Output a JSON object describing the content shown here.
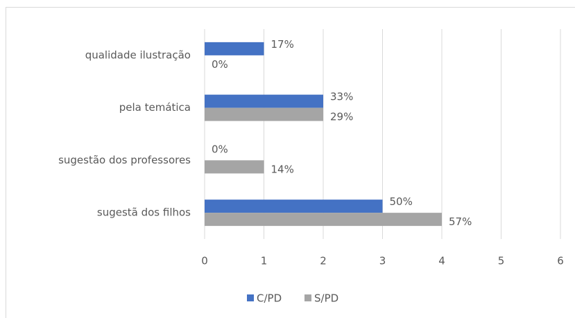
{
  "chart_data": {
    "type": "bar",
    "orientation": "horizontal",
    "categories": [
      "qualidade ilustração",
      "pela temática",
      "sugestão dos professores",
      "sugestã dos filhos"
    ],
    "series": [
      {
        "name": "C/PD",
        "color": "#4472c4",
        "values": [
          1,
          2,
          0,
          3
        ],
        "value_labels": [
          "17%",
          "33%",
          "0%",
          "50%"
        ]
      },
      {
        "name": "S/PD",
        "color": "#a5a5a5",
        "values": [
          0,
          2,
          1,
          4
        ],
        "value_labels": [
          "0%",
          "29%",
          "14%",
          "57%"
        ]
      }
    ],
    "xlim": [
      0,
      6
    ],
    "xticks": [
      0,
      1,
      2,
      3,
      4,
      5,
      6
    ],
    "grid": true,
    "legend": "bottom"
  }
}
